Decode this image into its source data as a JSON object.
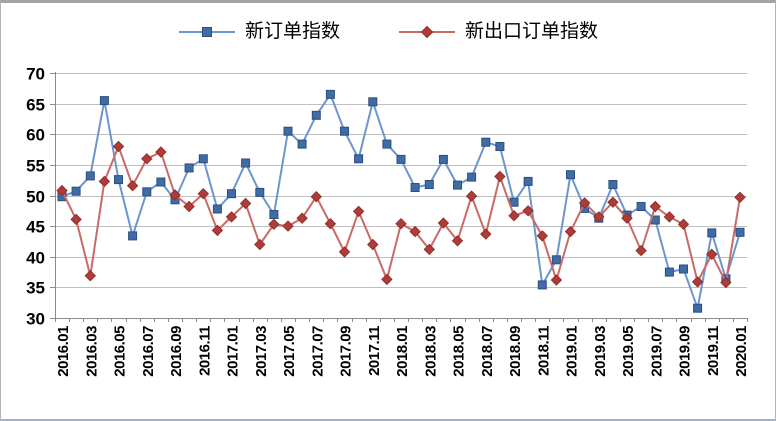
{
  "legend": {
    "series1_label": "新订单指数",
    "series2_label": "新出口订单指数"
  },
  "axes": {
    "y_tick_labels": [
      "30",
      "35",
      "40",
      "45",
      "50",
      "55",
      "60",
      "65",
      "70"
    ],
    "x_visible_labels": [
      "2016.01",
      "2016.03",
      "2016.05",
      "2016.07",
      "2016.09",
      "2016.11",
      "2017.01",
      "2017.03",
      "2017.05",
      "2017.07",
      "2017.09",
      "2017.11",
      "2018.01",
      "2018.03",
      "2018.05",
      "2018.07",
      "2018.09",
      "2018.11",
      "2019.01",
      "2019.03",
      "2019.05",
      "2019.07",
      "2019.09",
      "2019.11",
      "2020.01"
    ]
  },
  "colors": {
    "series1_line": "#6c96cc",
    "series1_marker": "#3f6ca5",
    "series1_marker_edge": "#2e4e80",
    "series2_line": "#c96a66",
    "series2_marker": "#b03c38",
    "series2_marker_edge": "#8f2f2c",
    "gridline": "#bfbfbf",
    "axis": "#8c8c8c",
    "text": "#000000"
  },
  "chart_data": {
    "type": "line",
    "title": "",
    "xlabel": "",
    "ylabel": "",
    "ylim": [
      30,
      70
    ],
    "y_ticks": [
      30,
      35,
      40,
      45,
      50,
      55,
      60,
      65,
      70
    ],
    "grid": "horizontal",
    "legend_position": "top-center",
    "x_label_step": 2,
    "x_label_rotation": -90,
    "categories": [
      "2016.01",
      "2016.02",
      "2016.03",
      "2016.04",
      "2016.05",
      "2016.06",
      "2016.07",
      "2016.08",
      "2016.09",
      "2016.10",
      "2016.11",
      "2016.12",
      "2017.01",
      "2017.02",
      "2017.03",
      "2017.04",
      "2017.05",
      "2017.06",
      "2017.07",
      "2017.08",
      "2017.09",
      "2017.10",
      "2017.11",
      "2017.12",
      "2018.01",
      "2018.02",
      "2018.03",
      "2018.04",
      "2018.05",
      "2018.06",
      "2018.07",
      "2018.08",
      "2018.09",
      "2018.10",
      "2018.11",
      "2018.12",
      "2019.01",
      "2019.02",
      "2019.03",
      "2019.04",
      "2019.05",
      "2019.06",
      "2019.07",
      "2019.08",
      "2019.09",
      "2019.10",
      "2019.11",
      "2019.12",
      "2020.01"
    ],
    "series": [
      {
        "name": "新订单指数",
        "marker": "square",
        "values": [
          49.8,
          50.7,
          53.2,
          65.5,
          52.6,
          43.4,
          50.6,
          52.2,
          49.3,
          54.5,
          56.0,
          47.8,
          50.3,
          55.3,
          50.5,
          46.9,
          60.5,
          58.4,
          63.1,
          66.5,
          60.5,
          56.0,
          65.3,
          58.4,
          55.9,
          51.3,
          51.8,
          55.9,
          51.7,
          53.0,
          58.7,
          58.0,
          48.9,
          52.3,
          35.4,
          39.5,
          53.4,
          47.9,
          46.3,
          51.8,
          46.8,
          48.2,
          46.0,
          37.5,
          38.0,
          31.6,
          43.9,
          36.4,
          44.0
        ]
      },
      {
        "name": "新出口订单指数",
        "marker": "diamond",
        "values": [
          50.8,
          46.1,
          36.9,
          52.3,
          58.0,
          51.6,
          56.0,
          57.1,
          50.1,
          48.2,
          50.3,
          44.3,
          46.5,
          48.7,
          42.0,
          45.3,
          45.0,
          46.3,
          49.8,
          45.4,
          40.8,
          47.4,
          42.0,
          36.3,
          45.4,
          44.1,
          41.2,
          45.5,
          42.6,
          49.9,
          43.7,
          53.1,
          46.7,
          47.5,
          43.4,
          36.2,
          44.1,
          48.8,
          46.5,
          48.9,
          46.3,
          41.0,
          48.2,
          46.5,
          45.3,
          35.9,
          40.4,
          35.8,
          49.7
        ]
      }
    ]
  }
}
